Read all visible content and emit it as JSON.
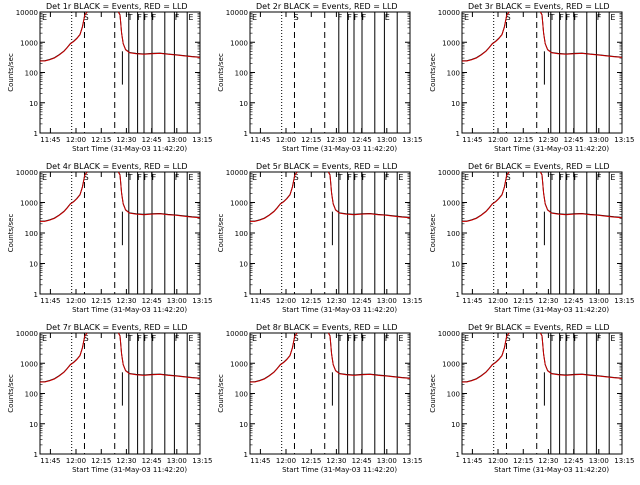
{
  "chart_data": [
    {
      "type": "line",
      "title": "Det 1r BLACK = Events, RED = LLD",
      "xlabel": "Start Time (31-May-03 11:42:20)",
      "ylabel": "Counts/sec",
      "yscale": "log",
      "ylim": [
        1,
        10000
      ],
      "x_tick_labels": [
        "11:45",
        "12:00",
        "12:15",
        "12:30",
        "12:45",
        "13:00",
        "13:15"
      ],
      "y_tick_labels": [
        "1",
        "10",
        "100",
        "1000",
        "10000"
      ],
      "region_letters": [
        "E",
        "S",
        "T",
        "F",
        "F",
        "F",
        "F",
        "E"
      ],
      "series": [
        {
          "color": "#000000"
        },
        {
          "color": "#cc0000"
        }
      ]
    },
    {
      "type": "line",
      "title": "Det 2r BLACK = Events, RED = LLD",
      "xlabel": "Start Time (31-May-03 11:42:20)",
      "ylabel": "Counts/sec",
      "yscale": "log",
      "ylim": [
        1,
        10000
      ],
      "x_tick_labels": [
        "11:45",
        "12:00",
        "12:15",
        "12:30",
        "12:45",
        "13:00",
        "13:15"
      ],
      "y_tick_labels": [
        "1",
        "10",
        "100",
        "1000",
        "10000"
      ],
      "region_letters": [
        "E",
        "S",
        "F",
        "F",
        "F",
        "F",
        "E"
      ],
      "series": []
    },
    {
      "type": "line",
      "title": "Det 3r BLACK = Events, RED = LLD",
      "xlabel": "Start Time (31-May-03 11:42:20)",
      "ylabel": "Counts/sec",
      "yscale": "log",
      "ylim": [
        1,
        10000
      ],
      "x_tick_labels": [
        "11:45",
        "12:00",
        "12:15",
        "12:30",
        "12:45",
        "13:00",
        "13:15"
      ],
      "y_tick_labels": [
        "1",
        "10",
        "100",
        "1000",
        "10000"
      ],
      "region_letters": [
        "E",
        "S",
        "T",
        "F",
        "F",
        "F",
        "F",
        "E"
      ],
      "series": [
        {
          "color": "#000000"
        },
        {
          "color": "#cc0000"
        }
      ]
    },
    {
      "type": "line",
      "title": "Det 4r BLACK = Events, RED = LLD",
      "xlabel": "Start Time (31-May-03 11:42:20)",
      "ylabel": "Counts/sec",
      "yscale": "log",
      "ylim": [
        1,
        10000
      ],
      "x_tick_labels": [
        "11:45",
        "12:00",
        "12:15",
        "12:30",
        "12:45",
        "13:00",
        "13:15"
      ],
      "y_tick_labels": [
        "1",
        "10",
        "100",
        "1000",
        "10000"
      ],
      "region_letters": [
        "E",
        "S",
        "T",
        "F",
        "F",
        "F",
        "F",
        "E"
      ],
      "series": [
        {
          "color": "#000000"
        },
        {
          "color": "#cc0000"
        }
      ]
    },
    {
      "type": "line",
      "title": "Det 5r BLACK = Events, RED = LLD",
      "xlabel": "Start Time (31-May-03 11:42:20)",
      "ylabel": "Counts/sec",
      "yscale": "log",
      "ylim": [
        1,
        10000
      ],
      "x_tick_labels": [
        "11:45",
        "12:00",
        "12:15",
        "12:30",
        "12:45",
        "13:00",
        "13:15"
      ],
      "y_tick_labels": [
        "1",
        "10",
        "100",
        "1000",
        "10000"
      ],
      "region_letters": [
        "E",
        "S",
        "T",
        "F",
        "F",
        "F",
        "F",
        "E"
      ],
      "series": [
        {
          "color": "#000000"
        },
        {
          "color": "#cc0000"
        }
      ]
    },
    {
      "type": "line",
      "title": "Det 6r BLACK = Events, RED = LLD",
      "xlabel": "Start Time (31-May-03 11:42:20)",
      "ylabel": "Counts/sec",
      "yscale": "log",
      "ylim": [
        1,
        10000
      ],
      "x_tick_labels": [
        "11:45",
        "12:00",
        "12:15",
        "12:30",
        "12:45",
        "13:00",
        "13:15"
      ],
      "y_tick_labels": [
        "1",
        "10",
        "100",
        "1000",
        "10000"
      ],
      "region_letters": [
        "E",
        "S",
        "T",
        "F",
        "F",
        "F",
        "F",
        "E"
      ],
      "series": [
        {
          "color": "#000000"
        },
        {
          "color": "#cc0000"
        }
      ]
    },
    {
      "type": "line",
      "title": "Det 7r BLACK = Events, RED = LLD",
      "xlabel": "Start Time (31-May-03 11:42:20)",
      "ylabel": "Counts/sec",
      "yscale": "log",
      "ylim": [
        1,
        10000
      ],
      "x_tick_labels": [
        "11:45",
        "12:00",
        "12:15",
        "12:30",
        "12:45",
        "13:00",
        "13:15"
      ],
      "y_tick_labels": [
        "1",
        "10",
        "100",
        "1000",
        "10000"
      ],
      "region_letters": [
        "E",
        "S",
        "T",
        "F",
        "F",
        "F",
        "F",
        "E"
      ],
      "series": [
        {
          "color": "#000000"
        },
        {
          "color": "#cc0000"
        }
      ]
    },
    {
      "type": "line",
      "title": "Det 8r BLACK = Events, RED = LLD",
      "xlabel": "Start Time (31-May-03 11:42:20)",
      "ylabel": "Counts/sec",
      "yscale": "log",
      "ylim": [
        1,
        10000
      ],
      "x_tick_labels": [
        "11:45",
        "12:00",
        "12:15",
        "12:30",
        "12:45",
        "13:00",
        "13:15"
      ],
      "y_tick_labels": [
        "1",
        "10",
        "100",
        "1000",
        "10000"
      ],
      "region_letters": [
        "E",
        "S",
        "T",
        "F",
        "F",
        "F",
        "F",
        "E"
      ],
      "series": [
        {
          "color": "#000000"
        },
        {
          "color": "#cc0000"
        }
      ]
    },
    {
      "type": "line",
      "title": "Det 9r BLACK = Events, RED = LLD",
      "xlabel": "Start Time (31-May-03 11:42:20)",
      "ylabel": "Counts/sec",
      "yscale": "log",
      "ylim": [
        1,
        10000
      ],
      "x_tick_labels": [
        "11:45",
        "12:00",
        "12:15",
        "12:30",
        "12:45",
        "13:00",
        "13:15"
      ],
      "y_tick_labels": [
        "1",
        "10",
        "100",
        "1000",
        "10000"
      ],
      "region_letters": [
        "E",
        "S",
        "T",
        "F",
        "F",
        "F",
        "F",
        "E"
      ],
      "series": [
        {
          "color": "#000000"
        },
        {
          "color": "#cc0000"
        }
      ]
    }
  ]
}
